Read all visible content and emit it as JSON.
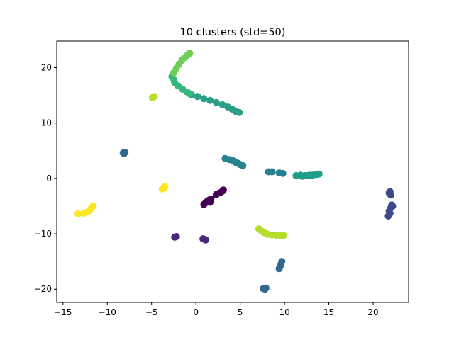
{
  "chart_data": {
    "type": "scatter",
    "title": "10 clusters (std=50)",
    "xlabel": "",
    "ylabel": "",
    "xlim": [
      -15.7,
      24.0
    ],
    "ylim": [
      -22.4,
      24.8
    ],
    "x_ticks": [
      -15,
      -10,
      -5,
      0,
      5,
      10,
      15,
      20
    ],
    "y_ticks": [
      -20,
      -10,
      0,
      10,
      20
    ],
    "x_tick_labels": [
      "−15",
      "−10",
      "−5",
      "0",
      "5",
      "10",
      "15",
      "20"
    ],
    "y_tick_labels": [
      "−20",
      "−10",
      "0",
      "10",
      "20"
    ],
    "grid": false,
    "legend": "none",
    "colormap": "viridis",
    "series": [
      {
        "color": "#440154",
        "x": [
          0.9,
          1.1,
          1.3,
          1.5,
          1.7,
          1.6,
          2.3,
          2.7,
          3.0,
          3.1
        ],
        "y": [
          -4.7,
          -4.4,
          -4.1,
          -3.9,
          -3.7,
          -4.3,
          -2.9,
          -2.6,
          -2.3,
          -2.1
        ]
      },
      {
        "color": "#482878",
        "x": [
          -2.4,
          -2.2,
          0.8,
          1.0,
          1.1
        ],
        "y": [
          -10.6,
          -10.5,
          -10.9,
          -11.0,
          -11.1
        ]
      },
      {
        "color": "#3e4989",
        "x": [
          21.8,
          21.9,
          22.0,
          21.9,
          22.1,
          22.0,
          21.8,
          21.9,
          22.2,
          21.7
        ],
        "y": [
          -2.6,
          -2.8,
          -3.0,
          -2.4,
          -4.8,
          -5.3,
          -5.9,
          -6.3,
          -5.0,
          -6.8
        ]
      },
      {
        "color": "#31688e",
        "x": [
          -8.2,
          -8.0,
          -8.1,
          9.4,
          9.5,
          9.6,
          9.7,
          7.6,
          7.8,
          7.9
        ],
        "y": [
          4.6,
          4.7,
          4.5,
          -16.3,
          -15.9,
          -15.5,
          -15.0,
          -19.9,
          -20.0,
          -19.8
        ]
      },
      {
        "color": "#26828e",
        "x": [
          3.3,
          3.8,
          4.2,
          4.5,
          4.8,
          5.0,
          5.3,
          8.2,
          8.6,
          9.4,
          9.8
        ],
        "y": [
          3.6,
          3.4,
          3.2,
          2.9,
          2.7,
          2.5,
          2.3,
          1.2,
          1.2,
          1.0,
          0.9
        ]
      },
      {
        "color": "#1f9e89",
        "x": [
          11.3,
          11.8,
          12.3,
          12.8,
          13.2,
          13.6,
          13.9,
          12.0,
          12.6
        ],
        "y": [
          0.5,
          0.6,
          0.5,
          0.6,
          0.6,
          0.7,
          0.8,
          0.4,
          0.5
        ]
      },
      {
        "color": "#2a9f88",
        "x": [
          -0.5,
          0.2,
          0.9,
          1.6,
          2.3,
          3.0,
          3.6,
          4.1,
          4.5,
          4.9
        ],
        "y": [
          15.1,
          14.8,
          14.4,
          14.1,
          13.7,
          13.3,
          12.9,
          12.5,
          12.1,
          11.9
        ]
      },
      {
        "color": "#35b779",
        "x": [
          -2.5,
          -2.7,
          -2.4,
          -2.0,
          -1.5,
          -1.0,
          -0.7
        ],
        "y": [
          17.9,
          18.4,
          17.3,
          16.7,
          16.1,
          15.6,
          15.3
        ]
      },
      {
        "color": "#6ece58",
        "x": [
          -2.5,
          -2.2,
          -1.9,
          -1.6,
          -1.3,
          -1.0,
          -0.8,
          -0.7
        ],
        "y": [
          19.1,
          19.9,
          20.6,
          21.3,
          21.8,
          22.2,
          22.5,
          22.6
        ]
      },
      {
        "color": "#b5de2b",
        "x": [
          -4.9,
          -4.7,
          7.1,
          7.4,
          7.7,
          8.1,
          8.6,
          9.1,
          9.6,
          9.9
        ],
        "y": [
          14.6,
          14.8,
          -9.1,
          -9.5,
          -9.8,
          -10.1,
          -10.2,
          -10.3,
          -10.3,
          -10.3
        ]
      },
      {
        "color": "#fde725",
        "x": [
          -13.3,
          -12.7,
          -12.3,
          -12.0,
          -11.8,
          -11.6,
          -3.8,
          -3.6,
          -3.5
        ],
        "y": [
          -6.4,
          -6.3,
          -6.1,
          -5.8,
          -5.4,
          -5.0,
          -1.9,
          -1.7,
          -1.5
        ]
      }
    ]
  }
}
